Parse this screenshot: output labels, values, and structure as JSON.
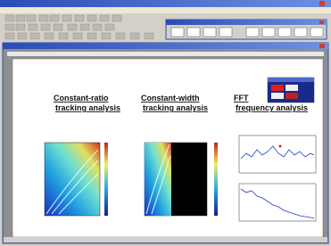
{
  "analyses": [
    {
      "title": "Constant-ratio",
      "subtitle": "tracking analysis"
    },
    {
      "title": "Constant-width",
      "subtitle": "tracking analysis"
    },
    {
      "title": "FFT",
      "subtitle": "frequency analysis"
    }
  ]
}
